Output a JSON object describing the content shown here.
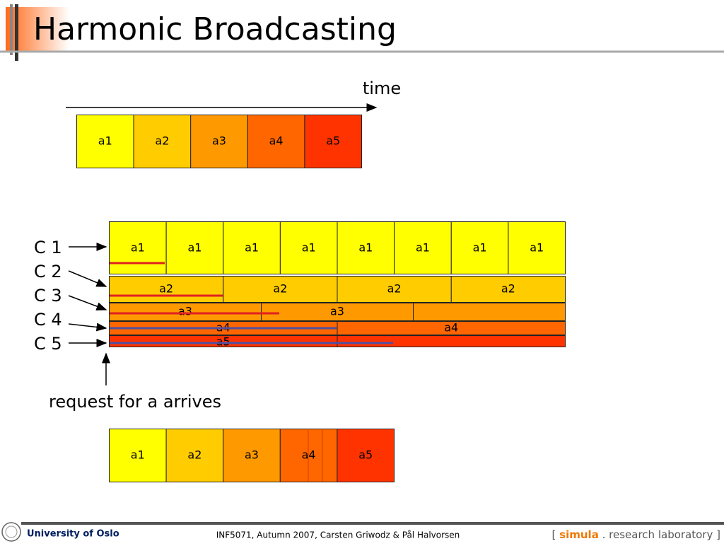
{
  "title": "Harmonic Broadcasting",
  "time_label": "time",
  "movie": {
    "cells": [
      {
        "label": "a1",
        "color": "#ffff00"
      },
      {
        "label": "a2",
        "color": "#ffcc00"
      },
      {
        "label": "a3",
        "color": "#ff9900"
      },
      {
        "label": "a4",
        "color": "#ff6600"
      },
      {
        "label": "a5",
        "color": "#ff3300"
      }
    ]
  },
  "channels": [
    {
      "name": "C 1",
      "cells": [
        {
          "label": "a1",
          "color": "#ffff00"
        },
        {
          "label": "a1",
          "color": "#ffff00"
        },
        {
          "label": "a1",
          "color": "#ffff00"
        },
        {
          "label": "a1",
          "color": "#ffff00"
        },
        {
          "label": "a1",
          "color": "#ffff00"
        },
        {
          "label": "a1",
          "color": "#ffff00"
        },
        {
          "label": "a1",
          "color": "#ffff00"
        },
        {
          "label": "a1",
          "color": "#ffff00"
        }
      ]
    },
    {
      "name": "C 2",
      "cells": [
        {
          "label": "a2",
          "color": "#ffcc00"
        },
        {
          "label": "a2",
          "color": "#ffcc00"
        },
        {
          "label": "a2",
          "color": "#ffcc00"
        },
        {
          "label": "a2",
          "color": "#ffcc00"
        }
      ]
    },
    {
      "name": "C 3",
      "cells": [
        {
          "label": "a3",
          "color": "#ff9900"
        },
        {
          "label": "a3",
          "color": "#ff9900"
        },
        {
          "color": "#ff9900"
        }
      ]
    },
    {
      "name": "C 4",
      "cells": [
        {
          "label": "a4",
          "color": "#ff6600"
        },
        {
          "label": "a4",
          "color": "#ff6600"
        }
      ]
    },
    {
      "name": "C 5",
      "cells": [
        {
          "label": "a5",
          "color": "#ff3300"
        },
        {
          "color": "#ff3300"
        }
      ]
    }
  ],
  "request_label": "request for a arrives",
  "playback": {
    "cells": [
      {
        "label": "a1",
        "color": "#ffff00"
      },
      {
        "label": "a2",
        "color": "#ffcc00"
      },
      {
        "label": "a3",
        "color": "#ff9900"
      },
      {
        "label": "a4",
        "color": "#ff6600"
      },
      {
        "label": "a5",
        "color": "#ff3300"
      }
    ]
  },
  "footer": {
    "university": "University of Oslo",
    "course": "INF5071,  Autumn 2007,  Carsten Griwodz & Pål Halvorsen",
    "lab": [
      "[",
      "simula",
      ".",
      "research laboratory",
      "]"
    ]
  }
}
